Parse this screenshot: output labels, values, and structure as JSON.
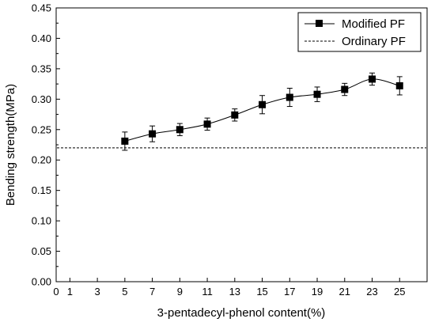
{
  "chart_data": {
    "type": "line",
    "xlabel": "3-pentadecyl-phenol content(%)",
    "ylabel": "Bending strength(MPa)",
    "xlim": [
      0,
      27
    ],
    "ylim": [
      0.0,
      0.45
    ],
    "x_ticks": [
      "0",
      "1",
      "3",
      "5",
      "7",
      "9",
      "11",
      "13",
      "15",
      "17",
      "19",
      "21",
      "23",
      "25"
    ],
    "y_ticks": [
      "0.00",
      "0.05",
      "0.10",
      "0.15",
      "0.20",
      "0.25",
      "0.30",
      "0.35",
      "0.40",
      "0.45"
    ],
    "legend_position": "top-right",
    "series": [
      {
        "name": "Modified PF",
        "style": "solid-line-square-markers",
        "color": "#000000",
        "x": [
          5,
          7,
          9,
          11,
          13,
          15,
          17,
          19,
          21,
          23,
          25
        ],
        "y": [
          0.231,
          0.243,
          0.25,
          0.259,
          0.274,
          0.291,
          0.303,
          0.308,
          0.316,
          0.333,
          0.322
        ],
        "error": [
          0.015,
          0.013,
          0.01,
          0.01,
          0.01,
          0.015,
          0.015,
          0.012,
          0.01,
          0.01,
          0.015
        ]
      },
      {
        "name": "Ordinary PF",
        "style": "dashed-horizontal-line",
        "color": "#000000",
        "y_constant": 0.22
      }
    ]
  }
}
